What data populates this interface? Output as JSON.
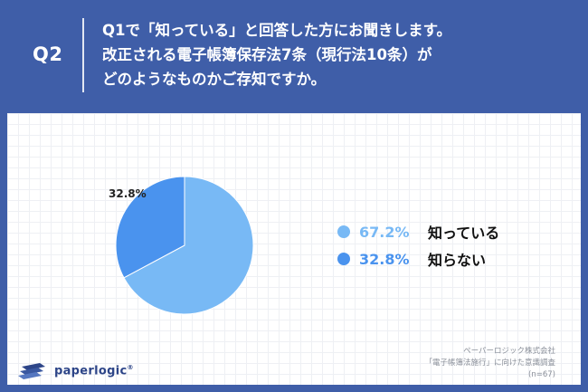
{
  "header": {
    "question_number": "Q2",
    "question_lines": [
      "Q1で「知っている」と回答した方にお聞きします。",
      "改正される電子帳簿保存法7条（現行法10条）が",
      "どのようなものかご存知ですか。"
    ]
  },
  "chart_data": {
    "type": "pie",
    "slices": [
      {
        "label": "知っている",
        "value": 67.2,
        "display": "67.2%",
        "color": "#78b9f5"
      },
      {
        "label": "知らない",
        "value": 32.8,
        "display": "32.8%",
        "color": "#4a93ee"
      }
    ],
    "start_angle_deg": 0,
    "direction": "clockwise",
    "legend_position": "right"
  },
  "footer": {
    "company": "ペーパーロジック株式会社",
    "survey": "「電子帳簿法施行」に向けた意識調査",
    "sample": "(n=67)"
  },
  "logo": {
    "text": "paperlogic",
    "mark": "®",
    "color": "#2d4588"
  }
}
